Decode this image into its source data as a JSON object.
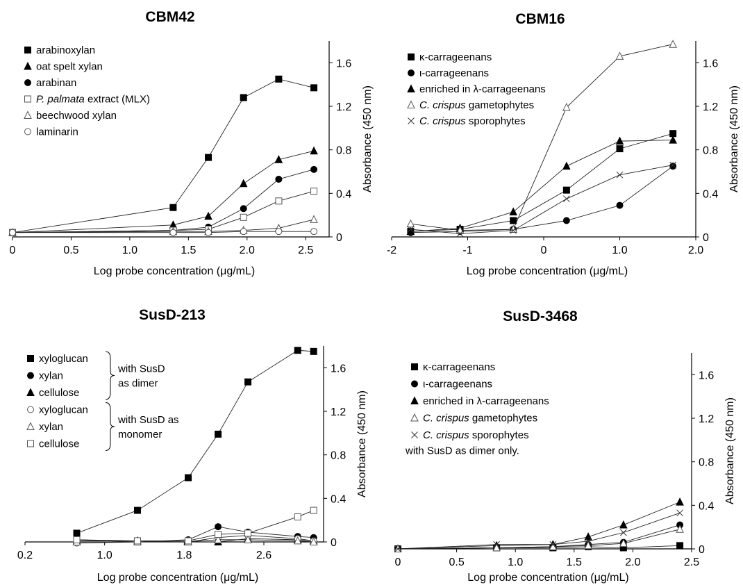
{
  "panels": [
    {
      "title": "CBM42",
      "chart_data": {
        "type": "line",
        "title": "CBM42",
        "xlabel": "Log probe concentration (μg/mL)",
        "ylabel": "Absorbance (450 nm)",
        "xlim": [
          0,
          2.7
        ],
        "ylim": [
          0,
          1.8
        ],
        "xticks": [
          0,
          0.5,
          1.0,
          1.5,
          2.0,
          2.5
        ],
        "xtick_labels": [
          "0",
          "0.5",
          "1.0",
          "1.5",
          "2.0",
          "2.5"
        ],
        "yticks": [
          0,
          0.4,
          0.8,
          1.2,
          1.6
        ],
        "ytick_labels": [
          "0",
          "0.4",
          "0.8",
          "1.2",
          "1.6"
        ],
        "y_axis_position": "right",
        "legend_position": "top-left",
        "series": [
          {
            "name": "arabinoxylan",
            "marker": "square-filled",
            "x": [
              0,
              1.37,
              1.67,
              1.97,
              2.27,
              2.57
            ],
            "y": [
              0.04,
              0.27,
              0.73,
              1.28,
              1.45,
              1.37
            ]
          },
          {
            "name": "oat spelt xylan",
            "marker": "triangle-filled",
            "x": [
              0,
              1.37,
              1.67,
              1.97,
              2.27,
              2.57
            ],
            "y": [
              0.04,
              0.11,
              0.19,
              0.49,
              0.71,
              0.79
            ]
          },
          {
            "name": "arabinan",
            "marker": "circle-filled",
            "x": [
              0,
              1.37,
              1.67,
              1.97,
              2.27,
              2.57
            ],
            "y": [
              0.04,
              0.06,
              0.09,
              0.26,
              0.53,
              0.62
            ]
          },
          {
            "name_prefix": "",
            "name_italic": "P. palmata",
            "name_suffix": " extract (MLX)",
            "marker": "square-open",
            "x": [
              0,
              1.37,
              1.67,
              1.97,
              2.27,
              2.57
            ],
            "y": [
              0.04,
              0.06,
              0.07,
              0.18,
              0.33,
              0.42
            ]
          },
          {
            "name": "beechwood xylan",
            "marker": "triangle-open",
            "x": [
              0,
              1.37,
              1.67,
              1.97,
              2.27,
              2.57
            ],
            "y": [
              0.04,
              0.05,
              0.05,
              0.06,
              0.08,
              0.16
            ]
          },
          {
            "name": "laminarin",
            "marker": "circle-open",
            "x": [
              0,
              1.37,
              1.67,
              1.97,
              2.27,
              2.57
            ],
            "y": [
              0.04,
              0.04,
              0.04,
              0.05,
              0.05,
              0.05
            ]
          }
        ]
      }
    },
    {
      "title": "CBM16",
      "chart_data": {
        "type": "line",
        "title": "CBM16",
        "xlabel": "Log probe concentration (μg/mL)",
        "ylabel": "Absorbance (450 nm)",
        "xlim": [
          -2,
          2
        ],
        "ylim": [
          0,
          1.8
        ],
        "xticks": [
          -2,
          -1,
          0,
          1,
          2
        ],
        "xtick_labels": [
          "-2",
          "-1",
          "0",
          "1.0",
          "2.0"
        ],
        "yticks": [
          0,
          0.4,
          0.8,
          1.2,
          1.6
        ],
        "ytick_labels": [
          "0",
          "0.4",
          "0.8",
          "1.2",
          "1.6"
        ],
        "y_axis_position": "right",
        "legend_position": "top-left",
        "series": [
          {
            "name": "κ-carrageenans",
            "marker": "square-filled",
            "x": [
              -1.75,
              -1.1,
              -0.4,
              0.3,
              1.0,
              1.7
            ],
            "y": [
              0.05,
              0.07,
              0.15,
              0.43,
              0.81,
              0.95
            ]
          },
          {
            "name": "ι-carrageenans",
            "marker": "circle-filled",
            "x": [
              -1.75,
              -1.1,
              -0.4,
              0.3,
              1.0,
              1.7
            ],
            "y": [
              0.04,
              0.05,
              0.07,
              0.15,
              0.29,
              0.65
            ]
          },
          {
            "name": "enriched in λ-carrageenans",
            "marker": "triangle-filled",
            "x": [
              -1.75,
              -1.1,
              -0.4,
              0.3,
              1.0,
              1.7
            ],
            "y": [
              0.05,
              0.08,
              0.23,
              0.65,
              0.88,
              0.89
            ]
          },
          {
            "name_prefix": "",
            "name_italic": "C. crispus",
            "name_suffix": " gametophytes",
            "marker": "triangle-open",
            "x": [
              -1.75,
              -1.1,
              -0.4,
              0.3,
              1.0,
              1.7
            ],
            "y": [
              0.12,
              0.06,
              0.07,
              1.19,
              1.66,
              1.77
            ]
          },
          {
            "name_prefix": "",
            "name_italic": "C. crispus",
            "name_suffix": " sporophytes",
            "marker": "x",
            "x": [
              -1.75,
              -1.1,
              -0.4,
              0.3,
              1.0,
              1.7
            ],
            "y": [
              0.07,
              0.03,
              0.06,
              0.35,
              0.57,
              0.66
            ]
          }
        ]
      }
    },
    {
      "title": "SusD-213",
      "chart_data": {
        "type": "line",
        "title": "SusD-213",
        "xlabel": "Log probe concentration (μg/mL)",
        "ylabel": "Absorbance (450 nm)",
        "xlim": [
          0.2,
          3.2
        ],
        "ylim": [
          0,
          1.8
        ],
        "xticks": [
          0.2,
          1.0,
          1.8,
          2.6
        ],
        "xtick_labels": [
          "0.2",
          "1.0",
          "1.8",
          "2.6"
        ],
        "yticks": [
          0,
          0.4,
          0.8,
          1.2,
          1.6
        ],
        "ytick_labels": [
          "0",
          "0.4",
          "0.8",
          "1.2",
          "1.6"
        ],
        "y_axis_position": "right",
        "legend_position": "top-left",
        "legend_groups": [
          {
            "label_lines": [
              "with SusD",
              "as dimer"
            ],
            "items": [
              0,
              1,
              2
            ]
          },
          {
            "label_lines": [
              "with SusD as",
              "monomer"
            ],
            "items": [
              3,
              4,
              5
            ]
          }
        ],
        "series": [
          {
            "name": "xyloglucan",
            "marker": "square-filled",
            "x": [
              0.72,
              1.33,
              1.84,
              2.14,
              2.44,
              2.94,
              3.1
            ],
            "y": [
              0.08,
              0.29,
              0.59,
              0.99,
              1.47,
              1.76,
              1.75
            ]
          },
          {
            "name": "xylan",
            "marker": "circle-filled",
            "x": [
              0.72,
              1.33,
              1.84,
              2.14,
              2.44,
              2.94,
              3.1
            ],
            "y": [
              0.02,
              0.0,
              0.02,
              0.14,
              0.09,
              0.05,
              0.04
            ]
          },
          {
            "name": "cellulose",
            "marker": "triangle-filled",
            "x": [
              0.72,
              1.33,
              1.84,
              2.14,
              2.44,
              2.94,
              3.1
            ],
            "y": [
              0.01,
              0.01,
              0.0,
              0.0,
              0.03,
              0.02,
              0.01
            ]
          },
          {
            "name": "xyloglucan",
            "marker": "circle-open",
            "x": [
              0.72,
              1.33,
              1.84,
              2.14,
              2.44,
              2.94,
              3.1
            ],
            "y": [
              -0.01,
              0.0,
              0.0,
              0.04,
              0.06,
              0.03,
              0.01
            ]
          },
          {
            "name": "xylan",
            "marker": "triangle-open",
            "x": [
              0.72,
              1.33,
              1.84,
              2.14,
              2.44,
              2.94,
              3.1
            ],
            "y": [
              0.0,
              0.0,
              0.0,
              0.02,
              0.02,
              0.01,
              0.0
            ]
          },
          {
            "name": "cellulose",
            "marker": "square-open",
            "x": [
              0.72,
              1.33,
              1.84,
              2.14,
              2.44,
              2.94,
              3.1
            ],
            "y": [
              0.02,
              0.01,
              0.01,
              0.07,
              0.08,
              0.23,
              0.29
            ]
          }
        ]
      }
    },
    {
      "title": "SusD-3468",
      "chart_data": {
        "type": "line",
        "title": "SusD-3468",
        "xlabel": "Log probe concentration (μg/mL)",
        "ylabel": "Absorbance (450 nm)",
        "xlim": [
          0,
          2.5
        ],
        "ylim": [
          0,
          1.8
        ],
        "xticks": [
          0,
          0.5,
          1.0,
          1.5,
          2.0,
          2.5
        ],
        "xtick_labels": [
          "0",
          "0.5",
          "1.0",
          "1.5",
          "2.0",
          "2.5"
        ],
        "yticks": [
          0,
          0.4,
          0.8,
          1.2,
          1.6
        ],
        "ytick_labels": [
          "0",
          "0.4",
          "0.8",
          "1.2",
          "1.6"
        ],
        "y_axis_position": "right",
        "legend_position": "top-left",
        "note": "with SusD as dimer only.",
        "series": [
          {
            "name": "κ-carrageenans",
            "marker": "square-filled",
            "x": [
              0,
              0.84,
              1.32,
              1.62,
              1.92,
              2.4
            ],
            "y": [
              0.0,
              0.01,
              0.01,
              0.02,
              0.01,
              0.03
            ]
          },
          {
            "name": "ι-carrageenans",
            "marker": "circle-filled",
            "x": [
              0,
              0.84,
              1.32,
              1.62,
              1.92,
              2.4
            ],
            "y": [
              0.0,
              0.01,
              0.02,
              0.04,
              0.06,
              0.22
            ]
          },
          {
            "name": "enriched in λ-carrageenans",
            "marker": "triangle-filled",
            "x": [
              0,
              0.84,
              1.32,
              1.62,
              1.92,
              2.4
            ],
            "y": [
              0.0,
              0.03,
              0.04,
              0.11,
              0.22,
              0.43
            ]
          },
          {
            "name_prefix": "",
            "name_italic": "C. crispus",
            "name_suffix": " gametophytes",
            "marker": "triangle-open",
            "x": [
              0,
              0.84,
              1.32,
              1.62,
              1.92,
              2.4
            ],
            "y": [
              0.0,
              0.01,
              0.02,
              0.03,
              0.05,
              0.18
            ]
          },
          {
            "name_prefix": "",
            "name_italic": "C. crispus",
            "name_suffix": " sporophytes",
            "marker": "x",
            "x": [
              0,
              0.84,
              1.32,
              1.62,
              1.92,
              2.4
            ],
            "y": [
              0.0,
              0.04,
              0.04,
              0.07,
              0.15,
              0.33
            ]
          }
        ]
      }
    }
  ]
}
